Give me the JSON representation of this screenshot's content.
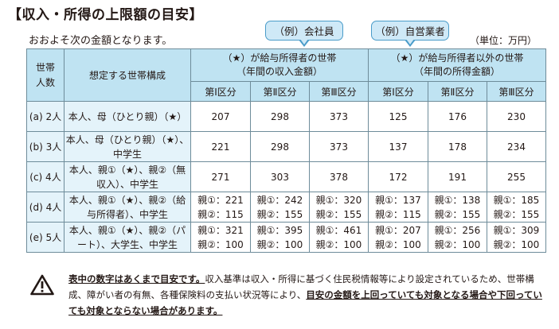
{
  "title": "【収入・所得の上限額の目安】",
  "subtitle": "おおよそ次の金額となります。",
  "unit": "（単位：万円）",
  "callouts": {
    "employee": "（例）会社員",
    "business": "（例）自営業者"
  },
  "table": {
    "h_household": "世帯\n人数",
    "h_composition": "想定する世帯構成",
    "h_group1": "（★）が給与所得者の世帯\n（年間の収入金額）",
    "h_group2": "（★）が給与所得者以外の世帯\n（年間の所得金額）",
    "categories": [
      "第Ⅰ区分",
      "第Ⅱ区分",
      "第Ⅲ区分",
      "第Ⅰ区分",
      "第Ⅱ区分",
      "第Ⅲ区分"
    ],
    "rows": [
      {
        "size": "(a) 2人",
        "composition": "本人、母（ひとり親）（★）",
        "values": [
          "207",
          "298",
          "373",
          "125",
          "176",
          "230"
        ]
      },
      {
        "size": "(b) 3人",
        "composition": "本人、母（ひとり親）（★）、中学生",
        "values": [
          "221",
          "298",
          "373",
          "137",
          "178",
          "234"
        ]
      },
      {
        "size": "(c) 4人",
        "composition": "本人、親①（★）、親②（無収入）、中学生",
        "values": [
          "271",
          "303",
          "378",
          "172",
          "191",
          "255"
        ]
      },
      {
        "size": "(d) 4人",
        "composition": "本人、親①（★）、親②（給与所得者）、中学生",
        "values": [
          "親①：221\n親②：115",
          "親①：242\n親②：155",
          "親①：320\n親②：155",
          "親①：137\n親②：115",
          "親①：138\n親②：155",
          "親①：185\n親②：155"
        ]
      },
      {
        "size": "(e) 5人",
        "composition": "本人、親①（★）、親②（パート）、大学生、中学生",
        "values": [
          "親①：321\n親②：100",
          "親①：395\n親②：100",
          "親①：461\n親②：100",
          "親①：207\n親②：100",
          "親①：256\n親②：100",
          "親①：309\n親②：100"
        ]
      }
    ]
  },
  "note": {
    "icon": "warning-icon",
    "bold_lead": "表中の数字はあくまで目安です。",
    "text": "収入基準は収入・所得に基づく住民税情報等により設定されているため、世帯構成、障がい者の有無、各種保険料の支払い状況等により、",
    "bold_tail": "目安の金額を上回っていても対象となる場合や下回っていても対象とならない場合があります。"
  }
}
